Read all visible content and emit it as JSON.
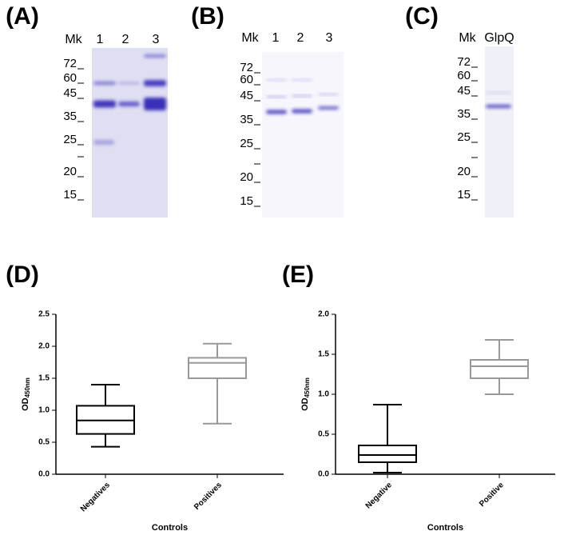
{
  "gels": [
    {
      "label": "(A)",
      "marker_header": "Mk",
      "lanes": [
        "1",
        "2",
        "3"
      ],
      "markers": [
        "72",
        "60",
        "45",
        "35",
        "25",
        "20",
        "15"
      ]
    },
    {
      "label": "(B)",
      "marker_header": "Mk",
      "lanes": [
        "1",
        "2",
        "3"
      ],
      "markers": [
        "72",
        "60",
        "45",
        "35",
        "25",
        "20",
        "15"
      ]
    },
    {
      "label": "(C)",
      "marker_header": "Mk",
      "lanes": [
        "GlpQ"
      ],
      "markers": [
        "72",
        "60",
        "45",
        "35",
        "25",
        "20",
        "15"
      ]
    }
  ],
  "chart_data": [
    {
      "type": "box",
      "panel_label": "(D)",
      "ylabel": "OD",
      "ylabel_sub": "450nm",
      "xlabel": "Controls",
      "categories": [
        "Negatives",
        "Positives"
      ],
      "boxes": [
        {
          "color": "#000000",
          "min": 0.43,
          "q1": 0.63,
          "median": 0.84,
          "q3": 1.07,
          "max": 1.4
        },
        {
          "color": "#999999",
          "min": 0.79,
          "q1": 1.5,
          "median": 1.74,
          "q3": 1.82,
          "max": 2.04
        }
      ],
      "ylim": [
        0,
        2.5
      ],
      "yticks": [
        {
          "value": 0,
          "label": "0.0"
        },
        0.5,
        {
          "value": 1,
          "label": "1.0"
        },
        1.5,
        {
          "value": 2,
          "label": "2.0"
        },
        2.5
      ]
    },
    {
      "type": "box",
      "panel_label": "(E)",
      "ylabel": "OD",
      "ylabel_sub": "450nm",
      "xlabel": "Controls",
      "categories": [
        "Negative",
        "Positive"
      ],
      "boxes": [
        {
          "color": "#000000",
          "min": 0.02,
          "q1": 0.15,
          "median": 0.24,
          "q3": 0.36,
          "max": 0.87
        },
        {
          "color": "#999999",
          "min": 1.0,
          "q1": 1.2,
          "median": 1.35,
          "q3": 1.43,
          "max": 1.68
        }
      ],
      "ylim": [
        0,
        2.0
      ],
      "yticks": [
        {
          "value": 0,
          "label": "0.0"
        },
        0.5,
        {
          "value": 1,
          "label": "1.0"
        },
        1.5,
        {
          "value": 2,
          "label": "2.0"
        }
      ]
    }
  ]
}
